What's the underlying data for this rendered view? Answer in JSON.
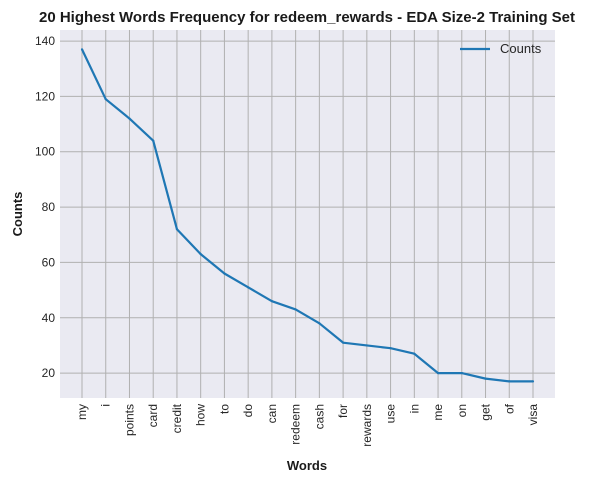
{
  "chart_data": {
    "type": "line",
    "title": "20 Highest Words Frequency for redeem_rewards - EDA Size-2 Training Set",
    "xlabel": "Words",
    "ylabel": "Counts",
    "categories": [
      "my",
      "i",
      "points",
      "card",
      "credit",
      "how",
      "to",
      "do",
      "can",
      "redeem",
      "cash",
      "for",
      "rewards",
      "use",
      "in",
      "me",
      "on",
      "get",
      "of",
      "visa"
    ],
    "series": [
      {
        "name": "Counts",
        "values": [
          137,
          119,
          112,
          104,
          72,
          63,
          56,
          51,
          46,
          43,
          38,
          31,
          30,
          29,
          27,
          20,
          20,
          18,
          17,
          17
        ]
      }
    ],
    "ylim": [
      11,
      144
    ],
    "yticks": [
      20,
      40,
      60,
      80,
      100,
      120,
      140
    ],
    "grid": true,
    "legend_position": "top-right",
    "colors": {
      "line": "#1f77b4",
      "plot_background": "#eaeaf2",
      "grid": "#b0b0b0"
    }
  }
}
